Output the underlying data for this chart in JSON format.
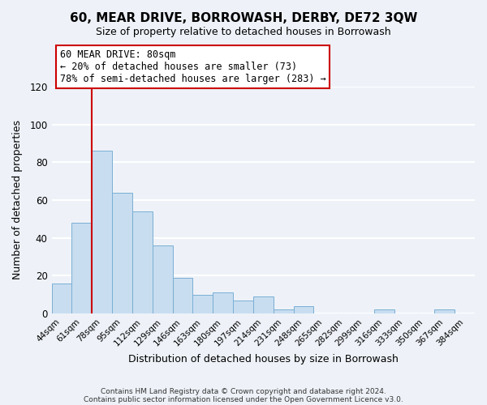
{
  "title": "60, MEAR DRIVE, BORROWASH, DERBY, DE72 3QW",
  "subtitle": "Size of property relative to detached houses in Borrowash",
  "xlabel": "Distribution of detached houses by size in Borrowash",
  "ylabel": "Number of detached properties",
  "bar_color": "#c8ddf0",
  "bar_edge_color": "#7aafd4",
  "background_color": "#eef2f8",
  "grid_color": "white",
  "categories": [
    "44sqm",
    "61sqm",
    "78sqm",
    "95sqm",
    "112sqm",
    "129sqm",
    "146sqm",
    "163sqm",
    "180sqm",
    "197sqm",
    "214sqm",
    "231sqm",
    "248sqm",
    "265sqm",
    "282sqm",
    "299sqm",
    "316sqm",
    "333sqm",
    "350sqm",
    "367sqm",
    "384sqm"
  ],
  "values": [
    16,
    48,
    86,
    64,
    54,
    36,
    19,
    10,
    11,
    7,
    9,
    2,
    4,
    0,
    0,
    0,
    2,
    0,
    0,
    2,
    0
  ],
  "ylim": [
    0,
    120
  ],
  "yticks": [
    0,
    20,
    40,
    60,
    80,
    100,
    120
  ],
  "marker_bar_index": 2,
  "marker_label": "60 MEAR DRIVE: 80sqm",
  "annotation_line1": "← 20% of detached houses are smaller (73)",
  "annotation_line2": "78% of semi-detached houses are larger (283) →",
  "marker_color": "#cc0000",
  "annotation_box_color": "white",
  "annotation_box_edge": "#cc0000",
  "footer_line1": "Contains HM Land Registry data © Crown copyright and database right 2024.",
  "footer_line2": "Contains public sector information licensed under the Open Government Licence v3.0."
}
